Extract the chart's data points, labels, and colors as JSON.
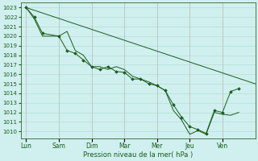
{
  "background_color": "#cff0ee",
  "grid_color": "#b0d8d0",
  "line_color": "#1a5c1a",
  "marker_color": "#1a5c1a",
  "xlabel": "Pression niveau de la mer( hPa )",
  "ylim": [
    1009.3,
    1023.5
  ],
  "yticks": [
    1010,
    1011,
    1012,
    1013,
    1014,
    1015,
    1016,
    1017,
    1018,
    1019,
    1020,
    1021,
    1022,
    1023
  ],
  "xtick_labels": [
    "Lun",
    "Sam",
    "Dim",
    "Mar",
    "Mer",
    "Jeu",
    "Ven"
  ],
  "xtick_positions": [
    0,
    24,
    48,
    72,
    96,
    120,
    144
  ],
  "xlim": [
    -4,
    168
  ],
  "straight_line_x": [
    0,
    168
  ],
  "straight_line_y": [
    1023.0,
    1015.0
  ],
  "detailed_line1_x": [
    0,
    6,
    12,
    24,
    30,
    36,
    42,
    48,
    54,
    60,
    66,
    72,
    78,
    84,
    90,
    96,
    102,
    108,
    114,
    120,
    126,
    132,
    138,
    144,
    150,
    156
  ],
  "detailed_line1_y": [
    1023.0,
    1021.8,
    1020.0,
    1020.0,
    1020.5,
    1018.5,
    1018.0,
    1016.8,
    1016.8,
    1016.5,
    1016.8,
    1016.5,
    1015.8,
    1015.5,
    1015.2,
    1014.8,
    1014.3,
    1012.2,
    1011.2,
    1009.7,
    1010.1,
    1009.7,
    1012.0,
    1011.8,
    1011.7,
    1012.0
  ],
  "detailed_line2_x": [
    0,
    6,
    12,
    24,
    30,
    36,
    42,
    48,
    54,
    60,
    66,
    72,
    78,
    84,
    90,
    96,
    102,
    108,
    114,
    120,
    126,
    132,
    138,
    144,
    150,
    156
  ],
  "detailed_line2_y": [
    1023.0,
    1022.0,
    1020.3,
    1020.0,
    1018.5,
    1018.2,
    1017.5,
    1016.8,
    1016.5,
    1016.8,
    1016.3,
    1016.2,
    1015.5,
    1015.5,
    1015.0,
    1014.8,
    1014.3,
    1012.8,
    1011.5,
    1010.5,
    1010.2,
    1009.8,
    1012.2,
    1012.0,
    1014.2,
    1014.5
  ],
  "vline_color": "#c8a0a0",
  "spine_color": "#336633"
}
